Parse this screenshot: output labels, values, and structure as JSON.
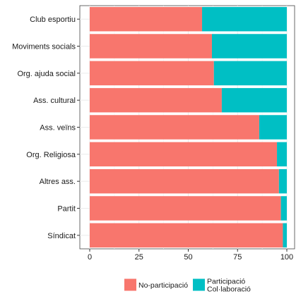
{
  "chart_data": {
    "type": "bar",
    "orientation": "horizontal",
    "stacked": true,
    "title": "",
    "xlabel": "",
    "ylabel": "",
    "xlim": [
      0,
      100
    ],
    "x_ticks": [
      0,
      25,
      50,
      75,
      100
    ],
    "grid": true,
    "legend_position": "bottom",
    "categories": [
      "Club esportiu",
      "Moviments socials",
      "Org. ajuda social",
      "Ass. cultural",
      "Ass. veïns",
      "Org. Religiosa",
      "Altres ass.",
      "Partit",
      "Síndicat"
    ],
    "series": [
      {
        "name": "No-participació",
        "color": "#F8766D",
        "values": [
          57,
          62,
          63,
          67,
          86,
          95,
          96,
          97,
          98
        ]
      },
      {
        "name": "Participació\nCol·laboració",
        "color": "#00BFC4",
        "values": [
          43,
          38,
          37,
          33,
          14,
          5,
          4,
          3,
          2
        ]
      }
    ]
  }
}
